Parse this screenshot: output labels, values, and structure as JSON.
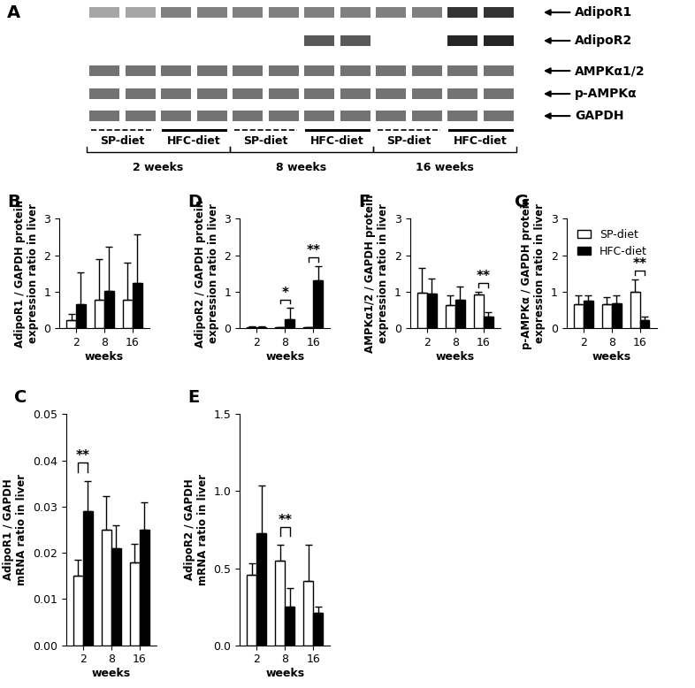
{
  "blot": {
    "panel": "A",
    "rows": [
      "AdipoR1",
      "AdipoR2",
      "AMPKα1/2",
      "p-AMPKα",
      "GAPDH"
    ],
    "groups": [
      {
        "period": "2 weeks",
        "diets": [
          "SP-diet",
          "HFC-diet"
        ]
      },
      {
        "period": "8 weeks",
        "diets": [
          "SP-diet",
          "HFC-diet"
        ]
      },
      {
        "period": "16 weeks",
        "diets": [
          "SP-diet",
          "HFC-diet"
        ]
      }
    ]
  },
  "chart_data": [
    {
      "panel": "B",
      "type": "bar",
      "y_label": "AdipoR1 / GAPDH protein\nexpression ratio in liver",
      "x_label": "weeks",
      "categories": [
        "2",
        "8",
        "16"
      ],
      "series": [
        {
          "name": "SP-diet",
          "color": "#ffffff",
          "values": [
            0.22,
            0.78,
            0.78
          ],
          "errors": [
            0.18,
            1.12,
            1.02
          ]
        },
        {
          "name": "HFC-diet",
          "color": "#000000",
          "values": [
            0.65,
            1.03,
            1.25
          ],
          "errors": [
            0.87,
            1.2,
            1.33
          ]
        }
      ],
      "ylim": [
        0,
        3
      ],
      "yticks": [
        0,
        1,
        2,
        3
      ],
      "annotations": []
    },
    {
      "panel": "D",
      "type": "bar",
      "y_label": "AdipoR2 / GAPDH protein\nexpression ratio in liver",
      "x_label": "weeks",
      "categories": [
        "2",
        "8",
        "16"
      ],
      "series": [
        {
          "name": "SP-diet",
          "color": "#ffffff",
          "values": [
            0.03,
            0.02,
            0.02
          ],
          "errors": [
            0.02,
            0.01,
            0.01
          ]
        },
        {
          "name": "HFC-diet",
          "color": "#000000",
          "values": [
            0.02,
            0.25,
            1.32
          ],
          "errors": [
            0.02,
            0.3,
            0.38
          ]
        }
      ],
      "ylim": [
        0,
        3
      ],
      "yticks": [
        0,
        1,
        2,
        3
      ],
      "annotations": [
        {
          "category": "8",
          "text": "*"
        },
        {
          "category": "16",
          "text": "**"
        }
      ]
    },
    {
      "panel": "F",
      "type": "bar",
      "y_label": "AMPKα1/2 / GAPDH protein\nexpression ratio in liver",
      "x_label": "weeks",
      "categories": [
        "2",
        "8",
        "16"
      ],
      "series": [
        {
          "name": "SP-diet",
          "color": "#ffffff",
          "values": [
            0.97,
            0.63,
            0.92
          ],
          "errors": [
            0.67,
            0.27,
            0.07
          ]
        },
        {
          "name": "HFC-diet",
          "color": "#000000",
          "values": [
            0.95,
            0.78,
            0.32
          ],
          "errors": [
            0.42,
            0.37,
            0.13
          ]
        }
      ],
      "ylim": [
        0,
        3
      ],
      "yticks": [
        0,
        1,
        2,
        3
      ],
      "annotations": [
        {
          "category": "16",
          "text": "**"
        }
      ]
    },
    {
      "panel": "G",
      "type": "bar",
      "y_label": "p-AMPKα / GAPDH protein\nexpression ratio in liver",
      "x_label": "weeks",
      "categories": [
        "2",
        "8",
        "16"
      ],
      "series": [
        {
          "name": "SP-diet",
          "color": "#ffffff",
          "values": [
            0.65,
            0.65,
            1.0
          ],
          "errors": [
            0.25,
            0.2,
            0.33
          ]
        },
        {
          "name": "HFC-diet",
          "color": "#000000",
          "values": [
            0.75,
            0.68,
            0.22
          ],
          "errors": [
            0.15,
            0.22,
            0.1
          ]
        }
      ],
      "ylim": [
        0,
        3
      ],
      "yticks": [
        0,
        1,
        2,
        3
      ],
      "legend": "upper right",
      "annotations": [
        {
          "category": "16",
          "text": "**"
        }
      ]
    },
    {
      "panel": "C",
      "type": "bar",
      "y_label": "AdipoR1 / GAPDH\nmRNA ratio in liver",
      "x_label": "weeks",
      "categories": [
        "2",
        "8",
        "16"
      ],
      "series": [
        {
          "name": "SP-diet",
          "color": "#ffffff",
          "values": [
            0.015,
            0.025,
            0.018
          ],
          "errors": [
            0.0035,
            0.0073,
            0.004
          ]
        },
        {
          "name": "HFC-diet",
          "color": "#000000",
          "values": [
            0.029,
            0.021,
            0.025
          ],
          "errors": [
            0.0065,
            0.005,
            0.006
          ]
        }
      ],
      "ylim": [
        0,
        0.05
      ],
      "yticks": [
        {
          "value": 0.0,
          "label": "0.00"
        },
        {
          "value": 0.01,
          "label": "0.01"
        },
        {
          "value": 0.02,
          "label": "0.02"
        },
        {
          "value": 0.03,
          "label": "0.03"
        },
        {
          "value": 0.04,
          "label": "0.04"
        },
        {
          "value": 0.05,
          "label": "0.05"
        }
      ],
      "annotations": [
        {
          "category": "2",
          "text": "**"
        }
      ]
    },
    {
      "panel": "E",
      "type": "bar",
      "y_label": "AdipoR2 / GAPDH\nmRNA ratio in liver",
      "x_label": "weeks",
      "categories": [
        "2",
        "8",
        "16"
      ],
      "series": [
        {
          "name": "SP-diet",
          "color": "#ffffff",
          "values": [
            0.46,
            0.55,
            0.42
          ],
          "errors": [
            0.07,
            0.1,
            0.23
          ]
        },
        {
          "name": "HFC-diet",
          "color": "#000000",
          "values": [
            0.73,
            0.25,
            0.21
          ],
          "errors": [
            0.31,
            0.12,
            0.04
          ]
        }
      ],
      "ylim": [
        0,
        1.5
      ],
      "yticks": [
        0.0,
        0.5,
        1.0,
        1.5
      ],
      "annotations": [
        {
          "category": "8",
          "text": "**"
        }
      ]
    }
  ]
}
